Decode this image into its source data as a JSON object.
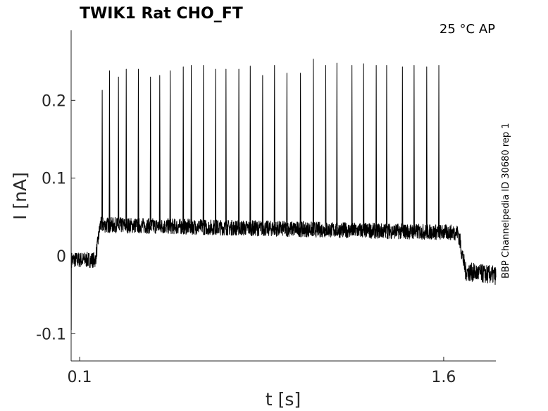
{
  "chart_data": {
    "type": "line",
    "title": "TWIK1  Rat  CHO_FT",
    "annotation": "25 °C  AP",
    "side_label": "BBP Channelpedia ID 30680 rep 1",
    "xlabel": "t [s]",
    "ylabel": "I [nA]",
    "xlim": [
      0.065,
      1.815
    ],
    "ylim": [
      -0.135,
      0.29
    ],
    "xticks": [
      0.1,
      1.6
    ],
    "xtick_labels": [
      "0.1",
      "1.6"
    ],
    "yticks": [
      -0.1,
      0,
      0.1,
      0.2
    ],
    "ytick_labels": [
      "-0.1",
      "0",
      "0.1",
      "0.2"
    ],
    "grid": false,
    "legend": "none",
    "line_color": "#000000",
    "series": [
      {
        "segments": [
          {
            "x": [
              0.065,
              0.165
            ],
            "y": [
              -0.005,
              -0.005
            ]
          },
          {
            "x": [
              0.165,
              0.185
            ],
            "y": [
              -0.005,
              0.04
            ]
          },
          {
            "x": [
              0.185,
              1.66
            ],
            "y": [
              0.04,
              0.03
            ]
          },
          {
            "x": [
              1.66,
              1.69
            ],
            "y": [
              0.03,
              -0.02
            ]
          },
          {
            "x": [
              1.69,
              1.815
            ],
            "y": [
              -0.02,
              -0.025
            ]
          }
        ],
        "spike_times": [
          0.193,
          0.223,
          0.26,
          0.292,
          0.342,
          0.392,
          0.43,
          0.473,
          0.527,
          0.56,
          0.61,
          0.66,
          0.703,
          0.756,
          0.803,
          0.854,
          0.903,
          0.954,
          1.01,
          1.063,
          1.114,
          1.16,
          1.222,
          1.27,
          1.322,
          1.365,
          1.43,
          1.478,
          1.53,
          1.58
        ],
        "spike_peaks": [
          0.213,
          0.238,
          0.23,
          0.24,
          0.24,
          0.23,
          0.232,
          0.238,
          0.243,
          0.245,
          0.245,
          0.24,
          0.24,
          0.24,
          0.244,
          0.232,
          0.245,
          0.235,
          0.235,
          0.253,
          0.245,
          0.248,
          0.245,
          0.247,
          0.245,
          0.245,
          0.243,
          0.245,
          0.243,
          0.245
        ]
      }
    ]
  }
}
